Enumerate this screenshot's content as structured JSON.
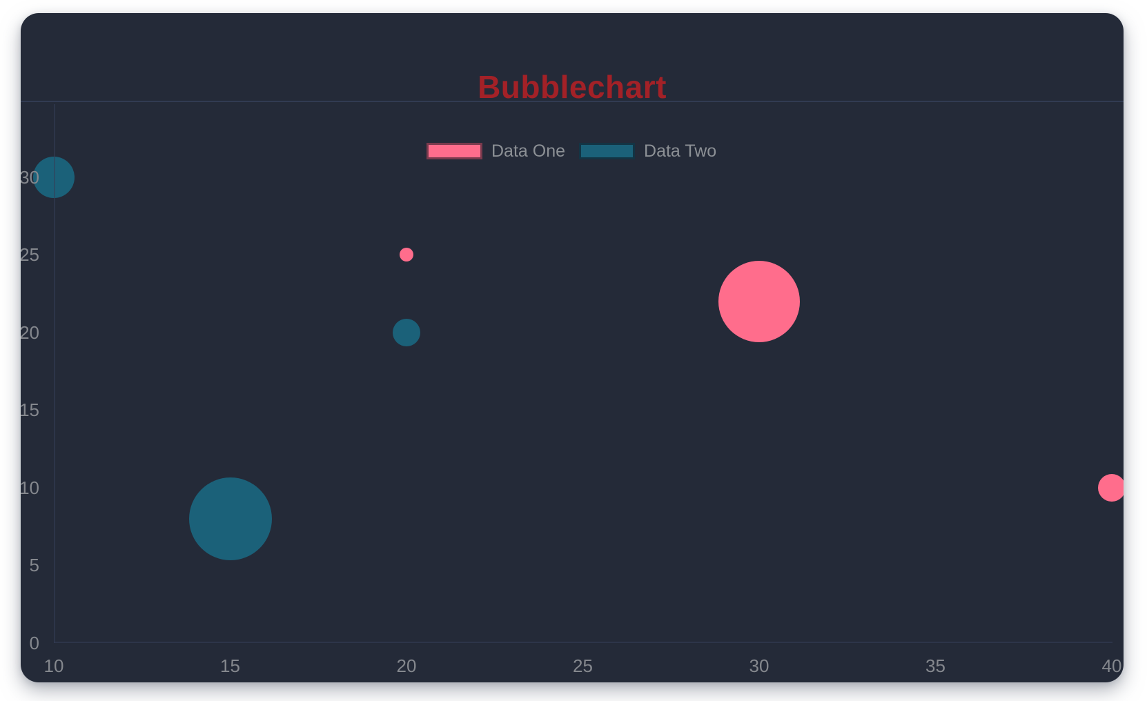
{
  "chart_data": {
    "type": "bubble",
    "title": "Bubblechart",
    "title_color": "#A32127",
    "series": [
      {
        "name": "Data One",
        "color": "#FF6D8C",
        "points": [
          {
            "x": 20,
            "y": 25,
            "r": 10
          },
          {
            "x": 30,
            "y": 22,
            "r": 59
          },
          {
            "x": 40,
            "y": 10,
            "r": 20
          }
        ]
      },
      {
        "name": "Data Two",
        "color": "#1B6179",
        "points": [
          {
            "x": 10,
            "y": 30,
            "r": 30
          },
          {
            "x": 20,
            "y": 20,
            "r": 20
          },
          {
            "x": 15,
            "y": 8,
            "r": 60
          }
        ]
      }
    ],
    "x_ticks": [
      "10",
      "15",
      "20",
      "25",
      "30",
      "35",
      "40"
    ],
    "y_ticks": [
      "0",
      "5",
      "10",
      "15",
      "20",
      "25",
      "30"
    ],
    "xlim": [
      10,
      40
    ],
    "ylim": [
      0,
      30
    ],
    "r_unit": "px",
    "grid": false,
    "legend_position": "top",
    "tick_label_color": "#85888E",
    "legend_label_color": "#8C9095",
    "background_color": "#242A38"
  }
}
